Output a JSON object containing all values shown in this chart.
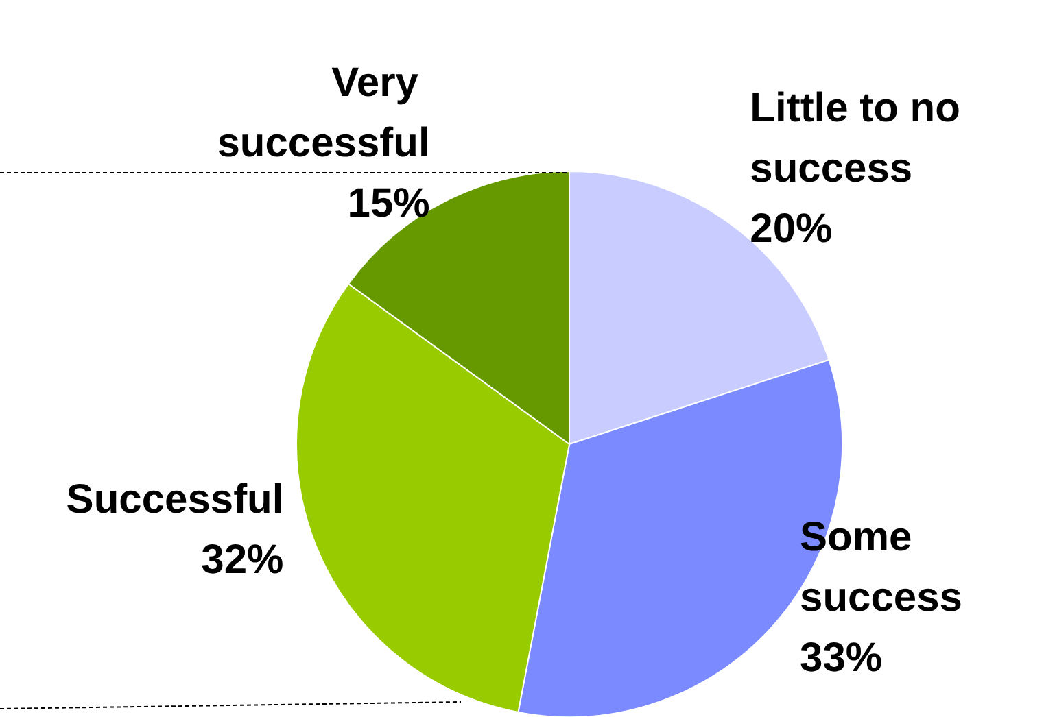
{
  "chart_data": {
    "type": "pie",
    "categories": [
      "Little to no success",
      "Some success",
      "Successful",
      "Very successful"
    ],
    "values": [
      20,
      33,
      32,
      15
    ],
    "value_labels": [
      "20%",
      "33%",
      "32%",
      "15%"
    ],
    "colors": [
      "#c8ccff",
      "#7b8aff",
      "#99cc00",
      "#669900"
    ]
  }
}
